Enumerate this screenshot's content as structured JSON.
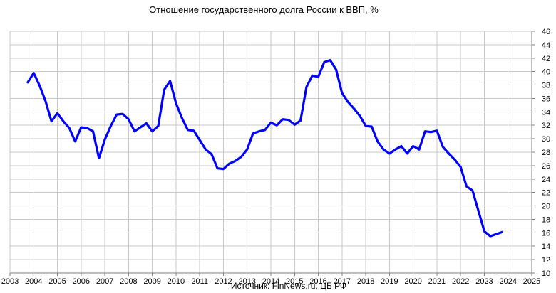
{
  "chart_data": {
    "type": "line",
    "title": "Отношение государственного долга России к ВВП, %",
    "source": "Источник: FinNews.ru, ЦБ РФ",
    "xlabel": "",
    "ylabel": "",
    "xlim": [
      2003,
      2025
    ],
    "ylim": [
      10,
      46
    ],
    "x_ticks": [
      "2003",
      "2004",
      "2005",
      "2006",
      "2007",
      "2008",
      "2009",
      "2010",
      "2011",
      "2012",
      "2013",
      "2014",
      "2015",
      "2016",
      "2017",
      "2018",
      "2019",
      "2020",
      "2021",
      "2022",
      "2023",
      "2024",
      "2025"
    ],
    "y_ticks": [
      "10",
      "12",
      "14",
      "16",
      "18",
      "20",
      "22",
      "24",
      "26",
      "28",
      "30",
      "32",
      "34",
      "36",
      "38",
      "40",
      "42",
      "44",
      "46"
    ],
    "grid": true,
    "legend": "none",
    "series_color": "#0000ff",
    "series": [
      {
        "x": [
          2003.75,
          2004.0,
          2004.25,
          2004.5,
          2004.75,
          2005.0,
          2005.25,
          2005.5,
          2005.75,
          2006.0,
          2006.25,
          2006.5,
          2006.75,
          2007.0,
          2007.25,
          2007.5,
          2007.75,
          2008.0,
          2008.25,
          2008.5,
          2008.75,
          2009.0,
          2009.25,
          2009.5,
          2009.75,
          2010.0,
          2010.25,
          2010.5,
          2010.75,
          2011.0,
          2011.25,
          2011.5,
          2011.75,
          2012.0,
          2012.25,
          2012.5,
          2012.75,
          2013.0,
          2013.25,
          2013.5,
          2013.75,
          2014.0,
          2014.25,
          2014.5,
          2014.75,
          2015.0,
          2015.25,
          2015.5,
          2015.75,
          2016.0,
          2016.25,
          2016.5,
          2016.75,
          2017.0,
          2017.25,
          2017.5,
          2017.75,
          2018.0,
          2018.25,
          2018.5,
          2018.75,
          2019.0,
          2019.25,
          2019.5,
          2019.75,
          2020.0,
          2020.25,
          2020.5,
          2020.75,
          2021.0,
          2021.25,
          2021.5,
          2021.75,
          2022.0,
          2022.25,
          2022.5,
          2022.75,
          2023.0,
          2023.25,
          2023.5,
          2023.75
        ],
        "values": [
          38.4,
          39.8,
          37.9,
          35.6,
          32.6,
          33.8,
          32.6,
          31.6,
          29.6,
          31.7,
          31.6,
          31.1,
          27.1,
          29.9,
          31.9,
          33.6,
          33.7,
          32.9,
          31.1,
          31.7,
          32.3,
          31.1,
          31.9,
          37.3,
          38.6,
          35.3,
          33.1,
          31.3,
          31.2,
          29.8,
          28.4,
          27.7,
          25.6,
          25.5,
          26.3,
          26.7,
          27.3,
          28.4,
          30.8,
          31.1,
          31.3,
          32.4,
          32.0,
          32.9,
          32.8,
          32.1,
          32.7,
          37.7,
          39.4,
          39.2,
          41.4,
          41.7,
          40.3,
          36.8,
          35.5,
          34.5,
          33.4,
          31.9,
          31.8,
          29.6,
          28.4,
          27.8,
          28.4,
          28.9,
          27.8,
          28.9,
          28.4,
          31.1,
          31.0,
          31.2,
          28.8,
          27.8,
          26.9,
          25.8,
          22.9,
          22.3,
          19.3,
          16.2,
          15.5,
          15.8,
          16.1
        ]
      }
    ]
  }
}
